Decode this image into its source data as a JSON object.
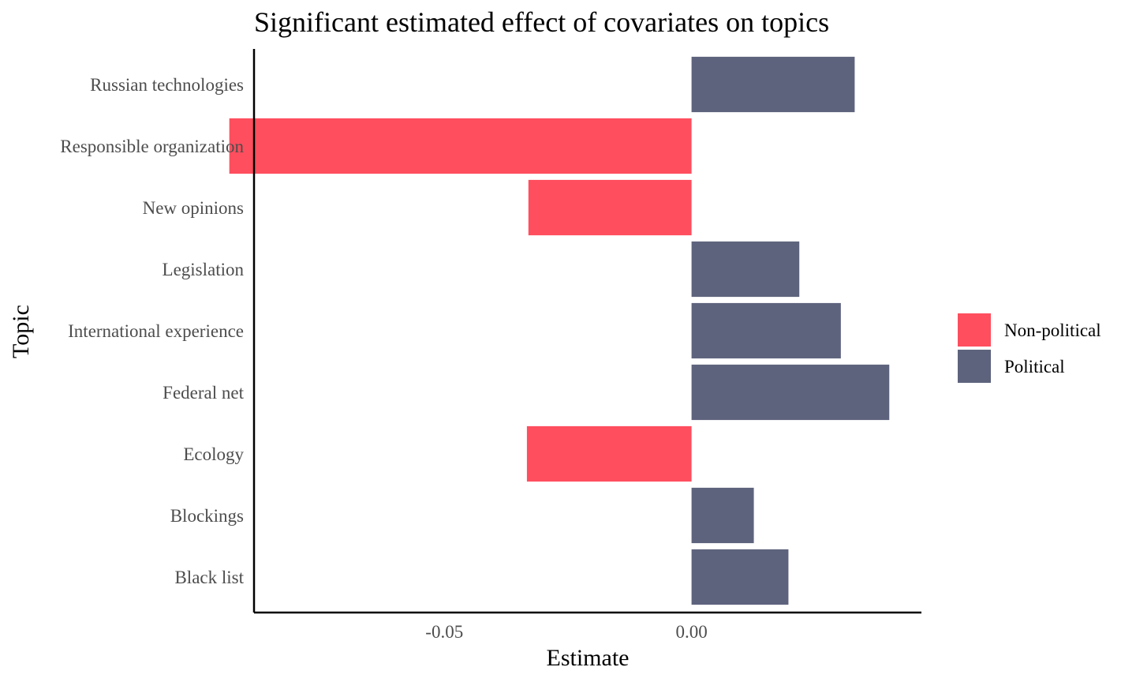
{
  "colors": {
    "Non-political": "#ff4e5e",
    "Political": "#5e637d",
    "axis": "#000000",
    "tick_text": "#4d4d4d",
    "background": "#ffffff"
  },
  "chart_data": {
    "type": "bar",
    "orientation": "horizontal",
    "title": "Significant estimated effect of covariates on topics",
    "xlabel": "Estimate",
    "ylabel": "Topic",
    "xlim": [
      -0.0885,
      0.0465
    ],
    "xticks": [
      -0.05,
      0.0
    ],
    "xtick_labels": [
      "-0.05",
      "0.00"
    ],
    "grid": false,
    "legend_position": "right",
    "legend": [
      {
        "label": "Non-political",
        "color_key": "Non-political"
      },
      {
        "label": "Political",
        "color_key": "Political"
      }
    ],
    "categories": [
      "Russian technologies",
      "Responsible organization",
      "New opinions",
      "Legislation",
      "International experience",
      "Federal net",
      "Ecology",
      "Blockings",
      "Black list"
    ],
    "values": [
      0.033,
      -0.0935,
      -0.033,
      0.0218,
      0.0302,
      0.04,
      -0.0333,
      0.0126,
      0.0196
    ],
    "groups": [
      "Political",
      "Non-political",
      "Non-political",
      "Political",
      "Political",
      "Political",
      "Non-political",
      "Political",
      "Political"
    ]
  }
}
